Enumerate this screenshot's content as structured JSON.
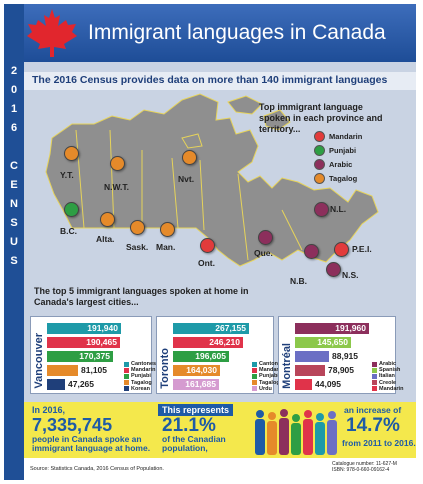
{
  "side_text": "2016 CENSUS",
  "title": "Immigrant languages in Canada",
  "subtitle": "The 2016 Census provides data on more than 140 immigrant languages",
  "legend": {
    "title": "Top immigrant language spoken in each province and territory...",
    "items": [
      {
        "label": "Mandarin",
        "color": "#e23b3b"
      },
      {
        "label": "Punjabi",
        "color": "#2e9e44"
      },
      {
        "label": "Arabic",
        "color": "#8c2f5c"
      },
      {
        "label": "Tagalog",
        "color": "#e58a2a"
      }
    ]
  },
  "provinces": [
    {
      "name": "Y.T.",
      "language": "Tagalog"
    },
    {
      "name": "N.W.T.",
      "language": "Tagalog"
    },
    {
      "name": "Nvt.",
      "language": "Tagalog"
    },
    {
      "name": "B.C.",
      "language": "Punjabi"
    },
    {
      "name": "Alta.",
      "language": "Tagalog"
    },
    {
      "name": "Sask.",
      "language": "Tagalog"
    },
    {
      "name": "Man.",
      "language": "Tagalog"
    },
    {
      "name": "Ont.",
      "language": "Mandarin"
    },
    {
      "name": "Que.",
      "language": "Arabic"
    },
    {
      "name": "N.L.",
      "language": "Arabic"
    },
    {
      "name": "P.E.I.",
      "language": "Mandarin"
    },
    {
      "name": "N.B.",
      "language": "Arabic"
    },
    {
      "name": "N.S.",
      "language": "Arabic"
    }
  ],
  "cities_caption": "The top 5 immigrant languages spoken at home in Canada's largest cities...",
  "chart_data": [
    {
      "type": "bar",
      "title": "Vancouver",
      "categories": [
        "Cantonese",
        "Mandarin",
        "Punjabi",
        "Tagalog",
        "Korean"
      ],
      "values": [
        191940,
        190465,
        170375,
        81105,
        47265
      ],
      "labels": [
        "191,940",
        "190,465",
        "170,375",
        "81,105",
        "47,265"
      ],
      "colors": [
        "#1e9aa8",
        "#e0334a",
        "#2e9e44",
        "#e58a2a",
        "#1f3f7a"
      ]
    },
    {
      "type": "bar",
      "title": "Toronto",
      "categories": [
        "Cantonese",
        "Mandarin",
        "Punjabi",
        "Tagalog",
        "Urdu"
      ],
      "values": [
        267155,
        246210,
        196605,
        164030,
        161685
      ],
      "labels": [
        "267,155",
        "246,210",
        "196,605",
        "164,030",
        "161,685"
      ],
      "colors": [
        "#1e9aa8",
        "#e0334a",
        "#2e9e44",
        "#e58a2a",
        "#d59bd0"
      ]
    },
    {
      "type": "bar",
      "title": "Montréal",
      "categories": [
        "Arabic",
        "Spanish",
        "Italian",
        "Creole",
        "Mandarin"
      ],
      "values": [
        191960,
        145650,
        88915,
        78905,
        44095
      ],
      "labels": [
        "191,960",
        "145,650",
        "88,915",
        "78,905",
        "44,095"
      ],
      "colors": [
        "#8c2f5c",
        "#8cc84b",
        "#6b6fc4",
        "#b8455a",
        "#e0334a"
      ]
    }
  ],
  "stats": {
    "s1_intro": "In 2016,",
    "s1_number": "7,335,745",
    "s1_rest": "people in Canada spoke an immigrant language at home.",
    "s2_intro": "This represents",
    "s2_number": "21.1%",
    "s2_rest": "of the Canadian population,",
    "s3_intro": "an increase of",
    "s3_number": "14.7%",
    "s3_rest": "from 2011 to 2016."
  },
  "footer": {
    "source": "Source: Statistics Canada, 2016 Census of Population.",
    "catalogue_1": "Catalogue number: 11-627-M",
    "catalogue_2": "ISBN: 978-0-660-09162-4"
  }
}
